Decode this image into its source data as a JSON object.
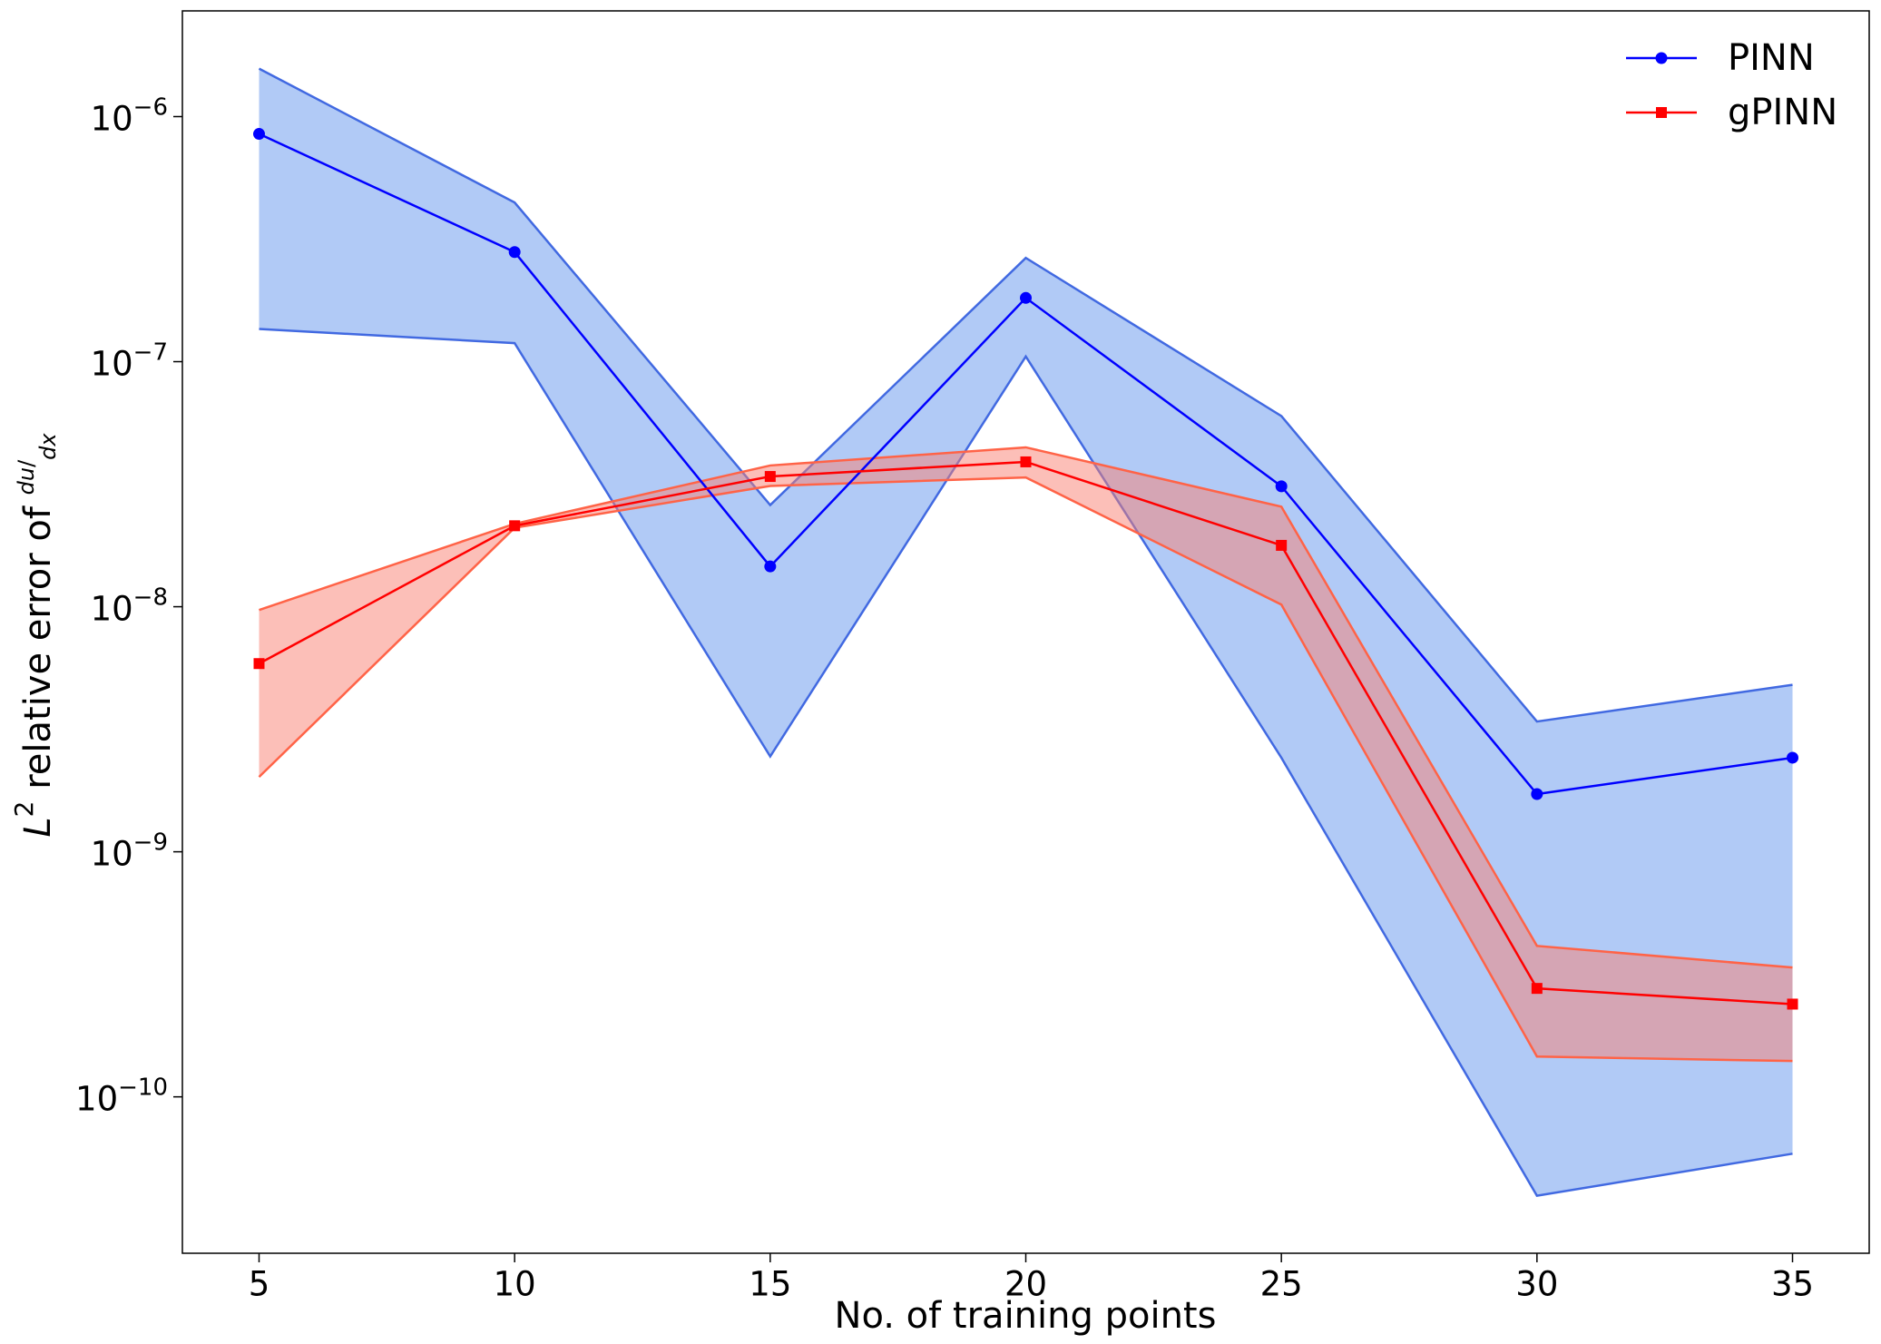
{
  "chart_data": {
    "type": "line",
    "x_label": "No. of training points",
    "y_label": "L2 relative error of du/dx",
    "x": [
      5,
      10,
      15,
      20,
      25,
      30,
      35
    ],
    "xlim": [
      3.5,
      36.5
    ],
    "xticks": [
      5,
      10,
      15,
      20,
      25,
      30,
      35
    ],
    "ylim": [
      2.3e-11,
      2.7e-06
    ],
    "yscale": "log",
    "yticks": [
      {
        "value": 1e-10,
        "label": "10−10"
      },
      {
        "value": 1e-09,
        "label": "10−9"
      },
      {
        "value": 1e-08,
        "label": "10−8"
      },
      {
        "value": 1e-07,
        "label": "10−7"
      },
      {
        "value": 1e-06,
        "label": "10−6"
      }
    ],
    "grid": false,
    "legend": "upper right",
    "series": [
      {
        "name": "PINN",
        "color": "#0000ff",
        "marker": "circle",
        "values": [
          8.5e-07,
          2.8e-07,
          1.46e-08,
          1.82e-07,
          3.1e-08,
          1.72e-09,
          2.42e-09
        ],
        "upper": [
          1.57e-06,
          4.46e-07,
          2.6e-08,
          2.65e-07,
          6e-08,
          3.4e-09,
          4.8e-09
        ],
        "lower": [
          1.36e-07,
          1.19e-07,
          2.45e-09,
          1.05e-07,
          2.42e-09,
          3.95e-11,
          5.86e-11
        ],
        "band_color": "#6495ed",
        "band_edge": "#4169e1"
      },
      {
        "name": "gPINN",
        "color": "#ff0000",
        "marker": "square",
        "values": [
          5.86e-09,
          2.14e-08,
          3.4e-08,
          3.9e-08,
          1.78e-08,
          2.77e-10,
          2.39e-10
        ],
        "upper": [
          9.7e-09,
          2.18e-08,
          3.77e-08,
          4.47e-08,
          2.56e-08,
          4.13e-10,
          3.37e-10
        ],
        "lower": [
          2.02e-09,
          2.1e-08,
          3.11e-08,
          3.37e-08,
          1.02e-08,
          1.46e-10,
          1.4e-10
        ],
        "band_color": "#fa8072",
        "band_edge": "#ff6347"
      }
    ]
  }
}
